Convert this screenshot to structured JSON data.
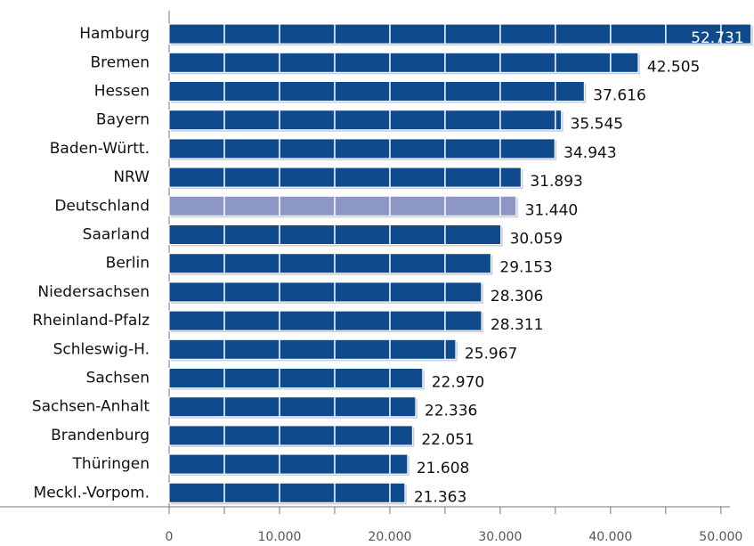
{
  "chart_data": {
    "type": "hbar",
    "categories": [
      "Hamburg",
      "Bremen",
      "Hessen",
      "Bayern",
      "Baden-Württ.",
      "NRW",
      "Deutschland",
      "Saarland",
      "Berlin",
      "Niedersachsen",
      "Rheinland-Pfalz",
      "Schleswig-H.",
      "Sachsen",
      "Sachsen-Anhalt",
      "Brandenburg",
      "Thüringen",
      "Meckl.-Vorpom."
    ],
    "values": [
      52731,
      42505,
      37616,
      35545,
      34943,
      31893,
      31440,
      30059,
      29153,
      28306,
      28311,
      25967,
      22970,
      22336,
      22051,
      21608,
      21363
    ],
    "value_labels": [
      "52.731",
      "42.505",
      "37.616",
      "35.545",
      "34.943",
      "31.893",
      "31.440",
      "30.059",
      "29.153",
      "28.306",
      "28.311",
      "25.967",
      "22.970",
      "22.336",
      "22.051",
      "21.608",
      "21.363"
    ],
    "colors": [
      "#0f4a8c",
      "#0f4a8c",
      "#0f4a8c",
      "#0f4a8c",
      "#0f4a8c",
      "#0f4a8c",
      "#8c97c5",
      "#0f4a8c",
      "#0f4a8c",
      "#0f4a8c",
      "#0f4a8c",
      "#0f4a8c",
      "#0f4a8c",
      "#0f4a8c",
      "#0f4a8c",
      "#0f4a8c",
      "#0f4a8c"
    ],
    "xlim": [
      0,
      53000
    ],
    "xticks": [
      0,
      {
        "value": 10000,
        "label": "10.000"
      },
      {
        "value": 20000,
        "label": "20.000"
      },
      {
        "value": 30000,
        "label": "30.000"
      },
      {
        "value": 40000,
        "label": "40.000"
      },
      {
        "value": 50000,
        "label": "50.000"
      }
    ],
    "xminor_ticks": [
      5000,
      15000,
      25000,
      35000,
      45000
    ],
    "grid": true
  }
}
